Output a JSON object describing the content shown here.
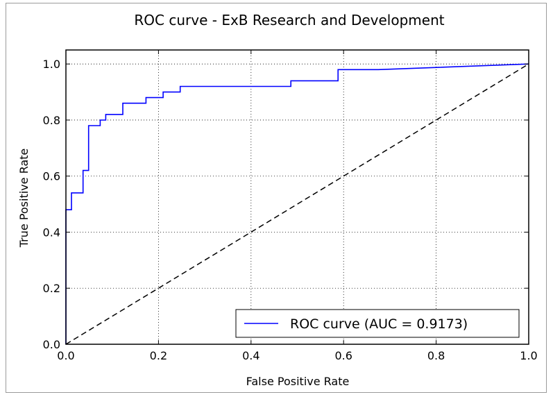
{
  "chart_data": {
    "type": "line",
    "title": "ROC curve - ExB Research and Development",
    "xlabel": "False Positive Rate",
    "ylabel": "True Positive Rate",
    "xlim": [
      0.0,
      1.0
    ],
    "ylim": [
      0.0,
      1.05
    ],
    "xticks": [
      0.0,
      0.2,
      0.4,
      0.6,
      0.8,
      1.0
    ],
    "yticks": [
      0.0,
      0.2,
      0.4,
      0.6,
      0.8,
      1.0
    ],
    "xtick_labels": [
      "0.0",
      "0.2",
      "0.4",
      "0.6",
      "0.8",
      "1.0"
    ],
    "ytick_labels": [
      "0.0",
      "0.2",
      "0.4",
      "0.6",
      "0.8",
      "1.0"
    ],
    "grid": true,
    "legend_position": "lower-right",
    "series": [
      {
        "name": "ROC curve (AUC = 0.9173)",
        "color": "#0000ff",
        "style": "solid",
        "x": [
          0.0,
          0.0,
          0.012,
          0.012,
          0.037,
          0.037,
          0.049,
          0.049,
          0.074,
          0.074,
          0.086,
          0.086,
          0.123,
          0.123,
          0.173,
          0.173,
          0.21,
          0.21,
          0.247,
          0.247,
          0.486,
          0.486,
          0.588,
          0.588,
          0.675,
          1.0
        ],
        "y": [
          0.0,
          0.48,
          0.48,
          0.54,
          0.54,
          0.62,
          0.62,
          0.78,
          0.78,
          0.8,
          0.8,
          0.82,
          0.82,
          0.86,
          0.86,
          0.88,
          0.88,
          0.9,
          0.9,
          0.92,
          0.92,
          0.94,
          0.94,
          0.98,
          0.98,
          1.0
        ]
      },
      {
        "name": "",
        "color": "#000000",
        "style": "dashed",
        "x": [
          0.0,
          1.0
        ],
        "y": [
          0.0,
          1.0
        ]
      }
    ]
  }
}
